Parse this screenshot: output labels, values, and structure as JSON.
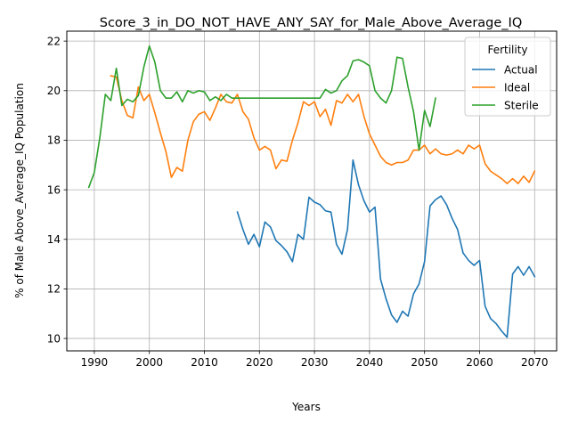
{
  "chart_data": {
    "type": "line",
    "title": "Score_3_in_DO_NOT_HAVE_ANY_SAY_for_Male_Above_Average_IQ",
    "xlabel": "Years",
    "ylabel": "% of Male Above_Average_IQ Population",
    "xlim": [
      1985,
      2074
    ],
    "ylim": [
      9.5,
      22.4
    ],
    "xticks": [
      1990,
      2000,
      2010,
      2020,
      2030,
      2040,
      2050,
      2060,
      2070
    ],
    "yticks": [
      10,
      12,
      14,
      16,
      18,
      20,
      22
    ],
    "grid": true,
    "legend": {
      "title": "Fertility",
      "placement": "top-right"
    },
    "series": [
      {
        "name": "Actual",
        "color": "#1f77b4",
        "x": [
          2016,
          2017,
          2018,
          2019,
          2020,
          2021,
          2022,
          2023,
          2024,
          2025,
          2026,
          2027,
          2028,
          2029,
          2030,
          2031,
          2032,
          2033,
          2034,
          2035,
          2036,
          2037,
          2038,
          2039,
          2040,
          2041,
          2042,
          2043,
          2044,
          2045,
          2046,
          2047,
          2048,
          2049,
          2050,
          2051,
          2052,
          2053,
          2054,
          2055,
          2056,
          2057,
          2058,
          2059,
          2060,
          2061,
          2062,
          2063,
          2064,
          2065,
          2066,
          2067,
          2068,
          2069,
          2070
        ],
        "y": [
          15.1,
          14.4,
          13.8,
          14.2,
          13.7,
          14.7,
          14.5,
          13.95,
          13.75,
          13.5,
          13.1,
          14.2,
          14.0,
          15.7,
          15.5,
          15.4,
          15.15,
          15.1,
          13.8,
          13.4,
          14.4,
          17.2,
          16.2,
          15.55,
          15.1,
          15.3,
          12.4,
          11.6,
          10.95,
          10.65,
          11.1,
          10.9,
          11.8,
          12.2,
          13.1,
          15.35,
          15.6,
          15.75,
          15.4,
          14.85,
          14.4,
          13.45,
          13.15,
          12.95,
          13.15,
          11.3,
          10.8,
          10.6,
          10.3,
          10.05,
          12.6,
          12.9,
          12.55,
          12.9,
          12.5
        ]
      },
      {
        "name": "Ideal",
        "color": "#ff7f0e",
        "x": [
          1993,
          1994,
          1995,
          1996,
          1997,
          1998,
          1999,
          2000,
          2001,
          2002,
          2003,
          2004,
          2005,
          2006,
          2007,
          2008,
          2009,
          2010,
          2011,
          2012,
          2013,
          2014,
          2015,
          2016,
          2017,
          2018,
          2019,
          2020,
          2021,
          2022,
          2023,
          2024,
          2025,
          2026,
          2027,
          2028,
          2029,
          2030,
          2031,
          2032,
          2033,
          2034,
          2035,
          2036,
          2037,
          2038,
          2039,
          2040,
          2041,
          2042,
          2043,
          2044,
          2045,
          2046,
          2047,
          2048,
          2049,
          2050,
          2051,
          2052,
          2053,
          2054,
          2055,
          2056,
          2057,
          2058,
          2059,
          2060,
          2061,
          2062,
          2063,
          2064,
          2065,
          2066,
          2067,
          2068,
          2069,
          2070
        ],
        "y": [
          20.6,
          20.55,
          19.6,
          19.0,
          18.9,
          20.15,
          19.6,
          19.85,
          19.1,
          18.3,
          17.55,
          16.5,
          16.9,
          16.75,
          18.0,
          18.75,
          19.05,
          19.15,
          18.8,
          19.3,
          19.85,
          19.55,
          19.5,
          19.85,
          19.15,
          18.85,
          18.1,
          17.6,
          17.75,
          17.6,
          16.85,
          17.2,
          17.15,
          18.0,
          18.7,
          19.55,
          19.4,
          19.55,
          18.95,
          19.25,
          18.6,
          19.6,
          19.5,
          19.85,
          19.55,
          19.85,
          18.95,
          18.25,
          17.8,
          17.35,
          17.1,
          17.0,
          17.1,
          17.1,
          17.2,
          17.6,
          17.6,
          17.8,
          17.45,
          17.65,
          17.45,
          17.4,
          17.45,
          17.6,
          17.45,
          17.8,
          17.65,
          17.8,
          17.05,
          16.75,
          16.6,
          16.45,
          16.25,
          16.45,
          16.25,
          16.55,
          16.3,
          16.75
        ]
      },
      {
        "name": "Sterile",
        "color": "#2ca02c",
        "x": [
          1989,
          1990,
          1991,
          1992,
          1993,
          1994,
          1995,
          1996,
          1997,
          1998,
          1999,
          2000,
          2001,
          2002,
          2003,
          2004,
          2005,
          2006,
          2007,
          2008,
          2009,
          2010,
          2011,
          2012,
          2013,
          2014,
          2015,
          2016,
          2017,
          2018,
          2019,
          2020,
          2021,
          2022,
          2023,
          2024,
          2025,
          2026,
          2027,
          2028,
          2029,
          2030,
          2031,
          2032,
          2033,
          2034,
          2035,
          2036,
          2037,
          2038,
          2039,
          2040,
          2041,
          2042,
          2043,
          2044,
          2045,
          2046,
          2047,
          2048,
          2049,
          2050,
          2051,
          2052
        ],
        "y": [
          16.1,
          16.7,
          18.1,
          19.85,
          19.6,
          20.9,
          19.4,
          19.65,
          19.55,
          19.8,
          20.95,
          21.8,
          21.15,
          20.0,
          19.7,
          19.7,
          19.95,
          19.55,
          20.0,
          19.9,
          20.0,
          19.95,
          19.6,
          19.75,
          19.6,
          19.85,
          19.7,
          19.7,
          19.7,
          19.7,
          19.7,
          19.7,
          19.7,
          19.7,
          19.7,
          19.7,
          19.7,
          19.7,
          19.7,
          19.7,
          19.7,
          19.7,
          19.7,
          20.05,
          19.9,
          20.0,
          20.4,
          20.6,
          21.2,
          21.25,
          21.15,
          21.0,
          20.0,
          19.7,
          19.5,
          20.0,
          21.35,
          21.3,
          20.15,
          19.15,
          17.6,
          19.2,
          18.55,
          19.7
        ]
      }
    ]
  }
}
